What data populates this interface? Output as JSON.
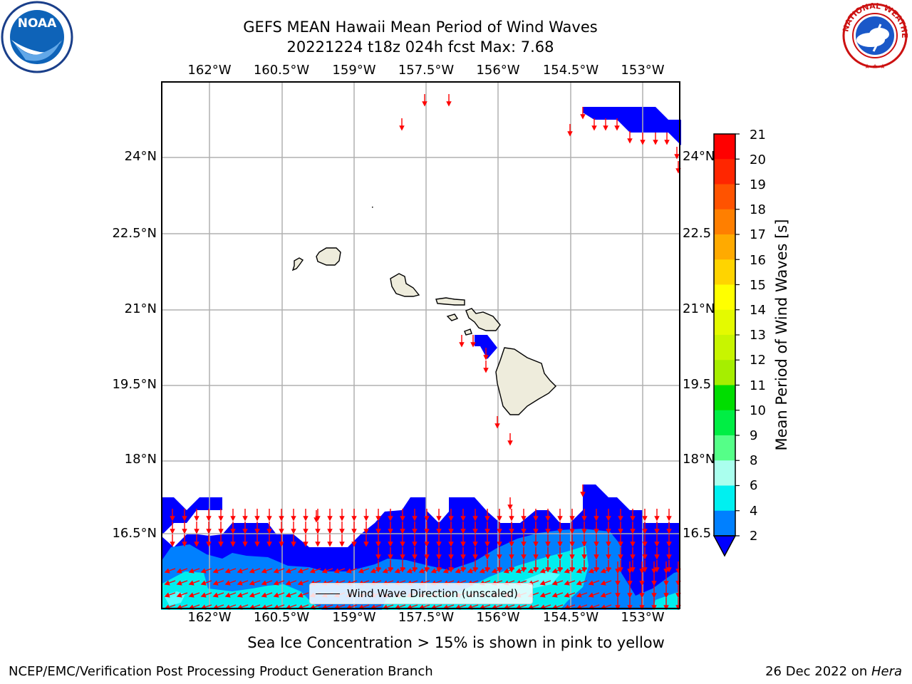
{
  "title": {
    "line1": "GEFS MEAN Hawaii Mean Period of Wind Waves",
    "line2": "20221224 t18z 024h fcst   Max: 7.68"
  },
  "logos": {
    "left": "NOAA",
    "right": "NATIONAL WEATHER SERVICE",
    "left_icon": "noaa-logo-icon",
    "right_icon": "nws-logo-icon"
  },
  "map": {
    "lon_ticks": [
      "162°W",
      "160.5°W",
      "159°W",
      "157.5°W",
      "156°W",
      "154.5°W",
      "153°W"
    ],
    "lat_ticks": [
      "24°N",
      "22.5°N",
      "21°N",
      "19.5°N",
      "18°N",
      "16.5°N"
    ],
    "lat_ticks_right": [
      "24°N",
      "22.5",
      "21°N",
      "19.5",
      "18°N",
      "16.5"
    ],
    "land_color": "#eeecdc",
    "arrow_color": "#ff0000",
    "grid_color": "#b0b0b0"
  },
  "colorbar": {
    "label": "Mean Period of Wind Waves [s]",
    "ticks": [
      "21",
      "20",
      "19",
      "18",
      "17",
      "16",
      "15",
      "14",
      "13",
      "12",
      "11",
      "10",
      "9",
      "8",
      "6",
      "4",
      "2"
    ],
    "colors": [
      "#ff0000",
      "#ff2600",
      "#ff5300",
      "#ff7f00",
      "#ffaa00",
      "#ffd400",
      "#ffff00",
      "#e4fa00",
      "#c8f500",
      "#a6ee00",
      "#6ee600",
      "#00dd00",
      "#00ee44",
      "#55ff88",
      "#aaffee",
      "#55ffff",
      "#00eeee",
      "#0080ff",
      "#0000ff"
    ],
    "under_color": "#0000ff"
  },
  "legend": {
    "label": "Wind Wave Direction (unscaled)"
  },
  "footer": {
    "note": "Sea Ice Concentration > 15% is shown in pink to yellow",
    "left": "NCEP/EMC/Verification Post Processing Product Generation Branch",
    "right_date": "26 Dec 2022 on ",
    "right_host": "Hera"
  }
}
